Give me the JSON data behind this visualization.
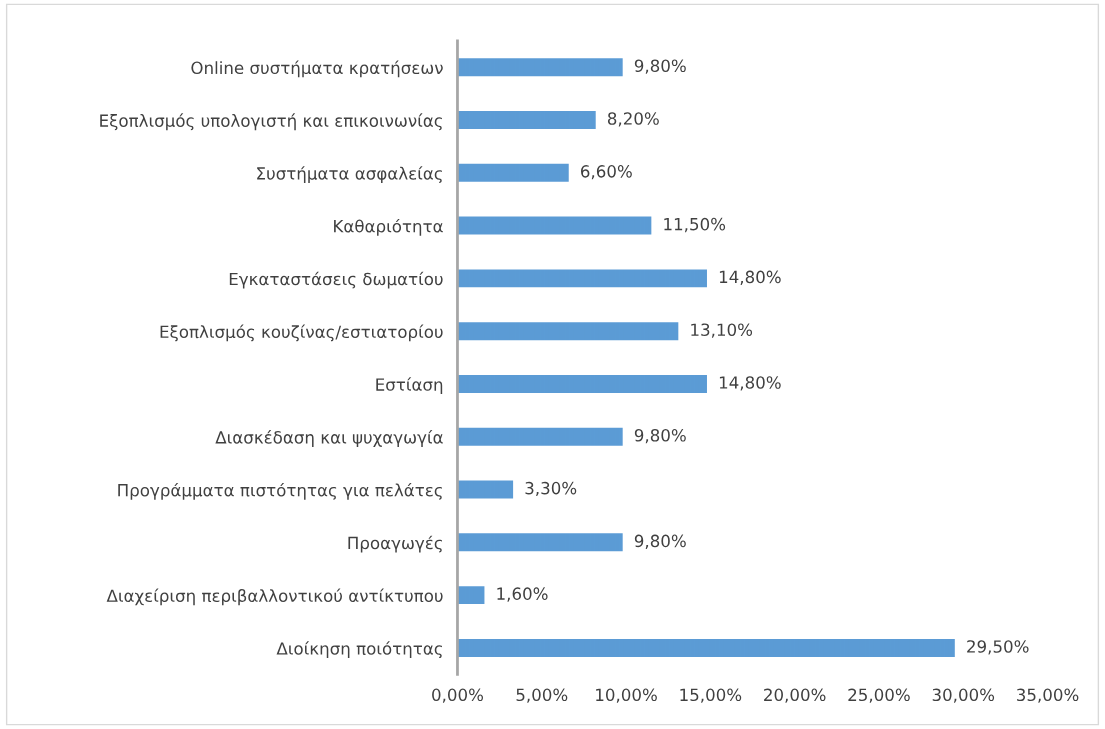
{
  "chart_data": {
    "type": "bar",
    "orientation": "horizontal",
    "categories": [
      "Online συστήματα κρατήσεων",
      "Εξοπλισμός υπολογιστή και επικοινωνίας",
      "Συστήματα ασφαλείας",
      "Καθαριότητα",
      "Εγκαταστάσεις δωματίου",
      "Εξοπλισμός κουζίνας/εστιατορίου",
      "Εστίαση",
      "Διασκέδαση και ψυχαγωγία",
      "Προγράμματα πιστότητας για πελάτες",
      "Προαγωγές",
      "Διαχείριση περιβαλλοντικού αντίκτυπου",
      "Διοίκηση ποιότητας"
    ],
    "values": [
      9.8,
      8.2,
      6.6,
      11.5,
      14.8,
      13.1,
      14.8,
      9.8,
      3.3,
      9.8,
      1.6,
      29.5
    ],
    "value_labels": [
      "9,80%",
      "8,20%",
      "6,60%",
      "11,50%",
      "14,80%",
      "13,10%",
      "14,80%",
      "9,80%",
      "3,30%",
      "9,80%",
      "1,60%",
      "29,50%"
    ],
    "color": "#5b9bd5",
    "xlim": [
      0,
      35
    ],
    "xticks": [
      {
        "value": 0,
        "label": "0,00%"
      },
      {
        "value": 5,
        "label": "5,00%"
      },
      {
        "value": 10,
        "label": "10,00%"
      },
      {
        "value": 15,
        "label": "15,00%"
      },
      {
        "value": 20,
        "label": "20,00%"
      },
      {
        "value": 25,
        "label": "25,00%"
      },
      {
        "value": 30,
        "label": "30,00%"
      },
      {
        "value": 35,
        "label": "35,00%"
      }
    ],
    "grid": false,
    "legend": false
  }
}
